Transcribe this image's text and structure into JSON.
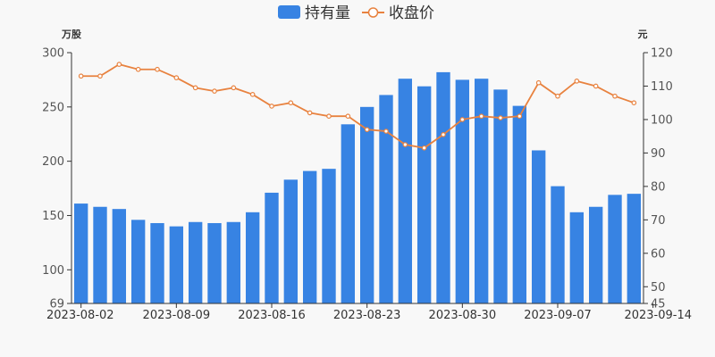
{
  "chart_data": {
    "type": "bar",
    "legend": {
      "position": "top-center",
      "items": [
        {
          "label": "持有量",
          "kind": "bar"
        },
        {
          "label": "收盘价",
          "kind": "line"
        }
      ]
    },
    "left_axis": {
      "unit": "万股",
      "ylim": [
        69,
        300
      ],
      "ticks": [
        69,
        100,
        150,
        200,
        250,
        300
      ]
    },
    "right_axis": {
      "unit": "元",
      "ylim": [
        45,
        120
      ],
      "ticks": [
        45,
        50,
        60,
        70,
        80,
        90,
        100,
        110,
        120
      ]
    },
    "x_tick_labels": [
      "2023-08-02",
      "2023-08-09",
      "2023-08-16",
      "2023-08-23",
      "2023-08-30",
      "2023-09-07",
      "2023-09-14"
    ],
    "x_tick_indices": [
      0,
      5,
      10,
      15,
      20,
      25,
      30
    ],
    "grid": false,
    "colors": {
      "bar": "#3783e3",
      "line": "#e8823f"
    },
    "series": [
      {
        "name": "持有量",
        "type": "bar",
        "axis": "left",
        "values": [
          161,
          158,
          156,
          146,
          143,
          140,
          144,
          143,
          144,
          153,
          171,
          183,
          191,
          193,
          234,
          250,
          261,
          276,
          269,
          282,
          275,
          276,
          266,
          251,
          210,
          177,
          153,
          158,
          169,
          170
        ]
      },
      {
        "name": "收盘价",
        "type": "line",
        "axis": "right",
        "values": [
          113,
          113,
          116.5,
          115,
          115,
          112.5,
          109.5,
          108.5,
          109.5,
          107.5,
          104,
          105,
          102,
          101,
          101,
          97,
          96.5,
          92.5,
          91.5,
          95.5,
          100,
          101,
          100.5,
          101,
          111,
          107,
          111.5,
          110,
          107,
          105
        ]
      }
    ]
  }
}
